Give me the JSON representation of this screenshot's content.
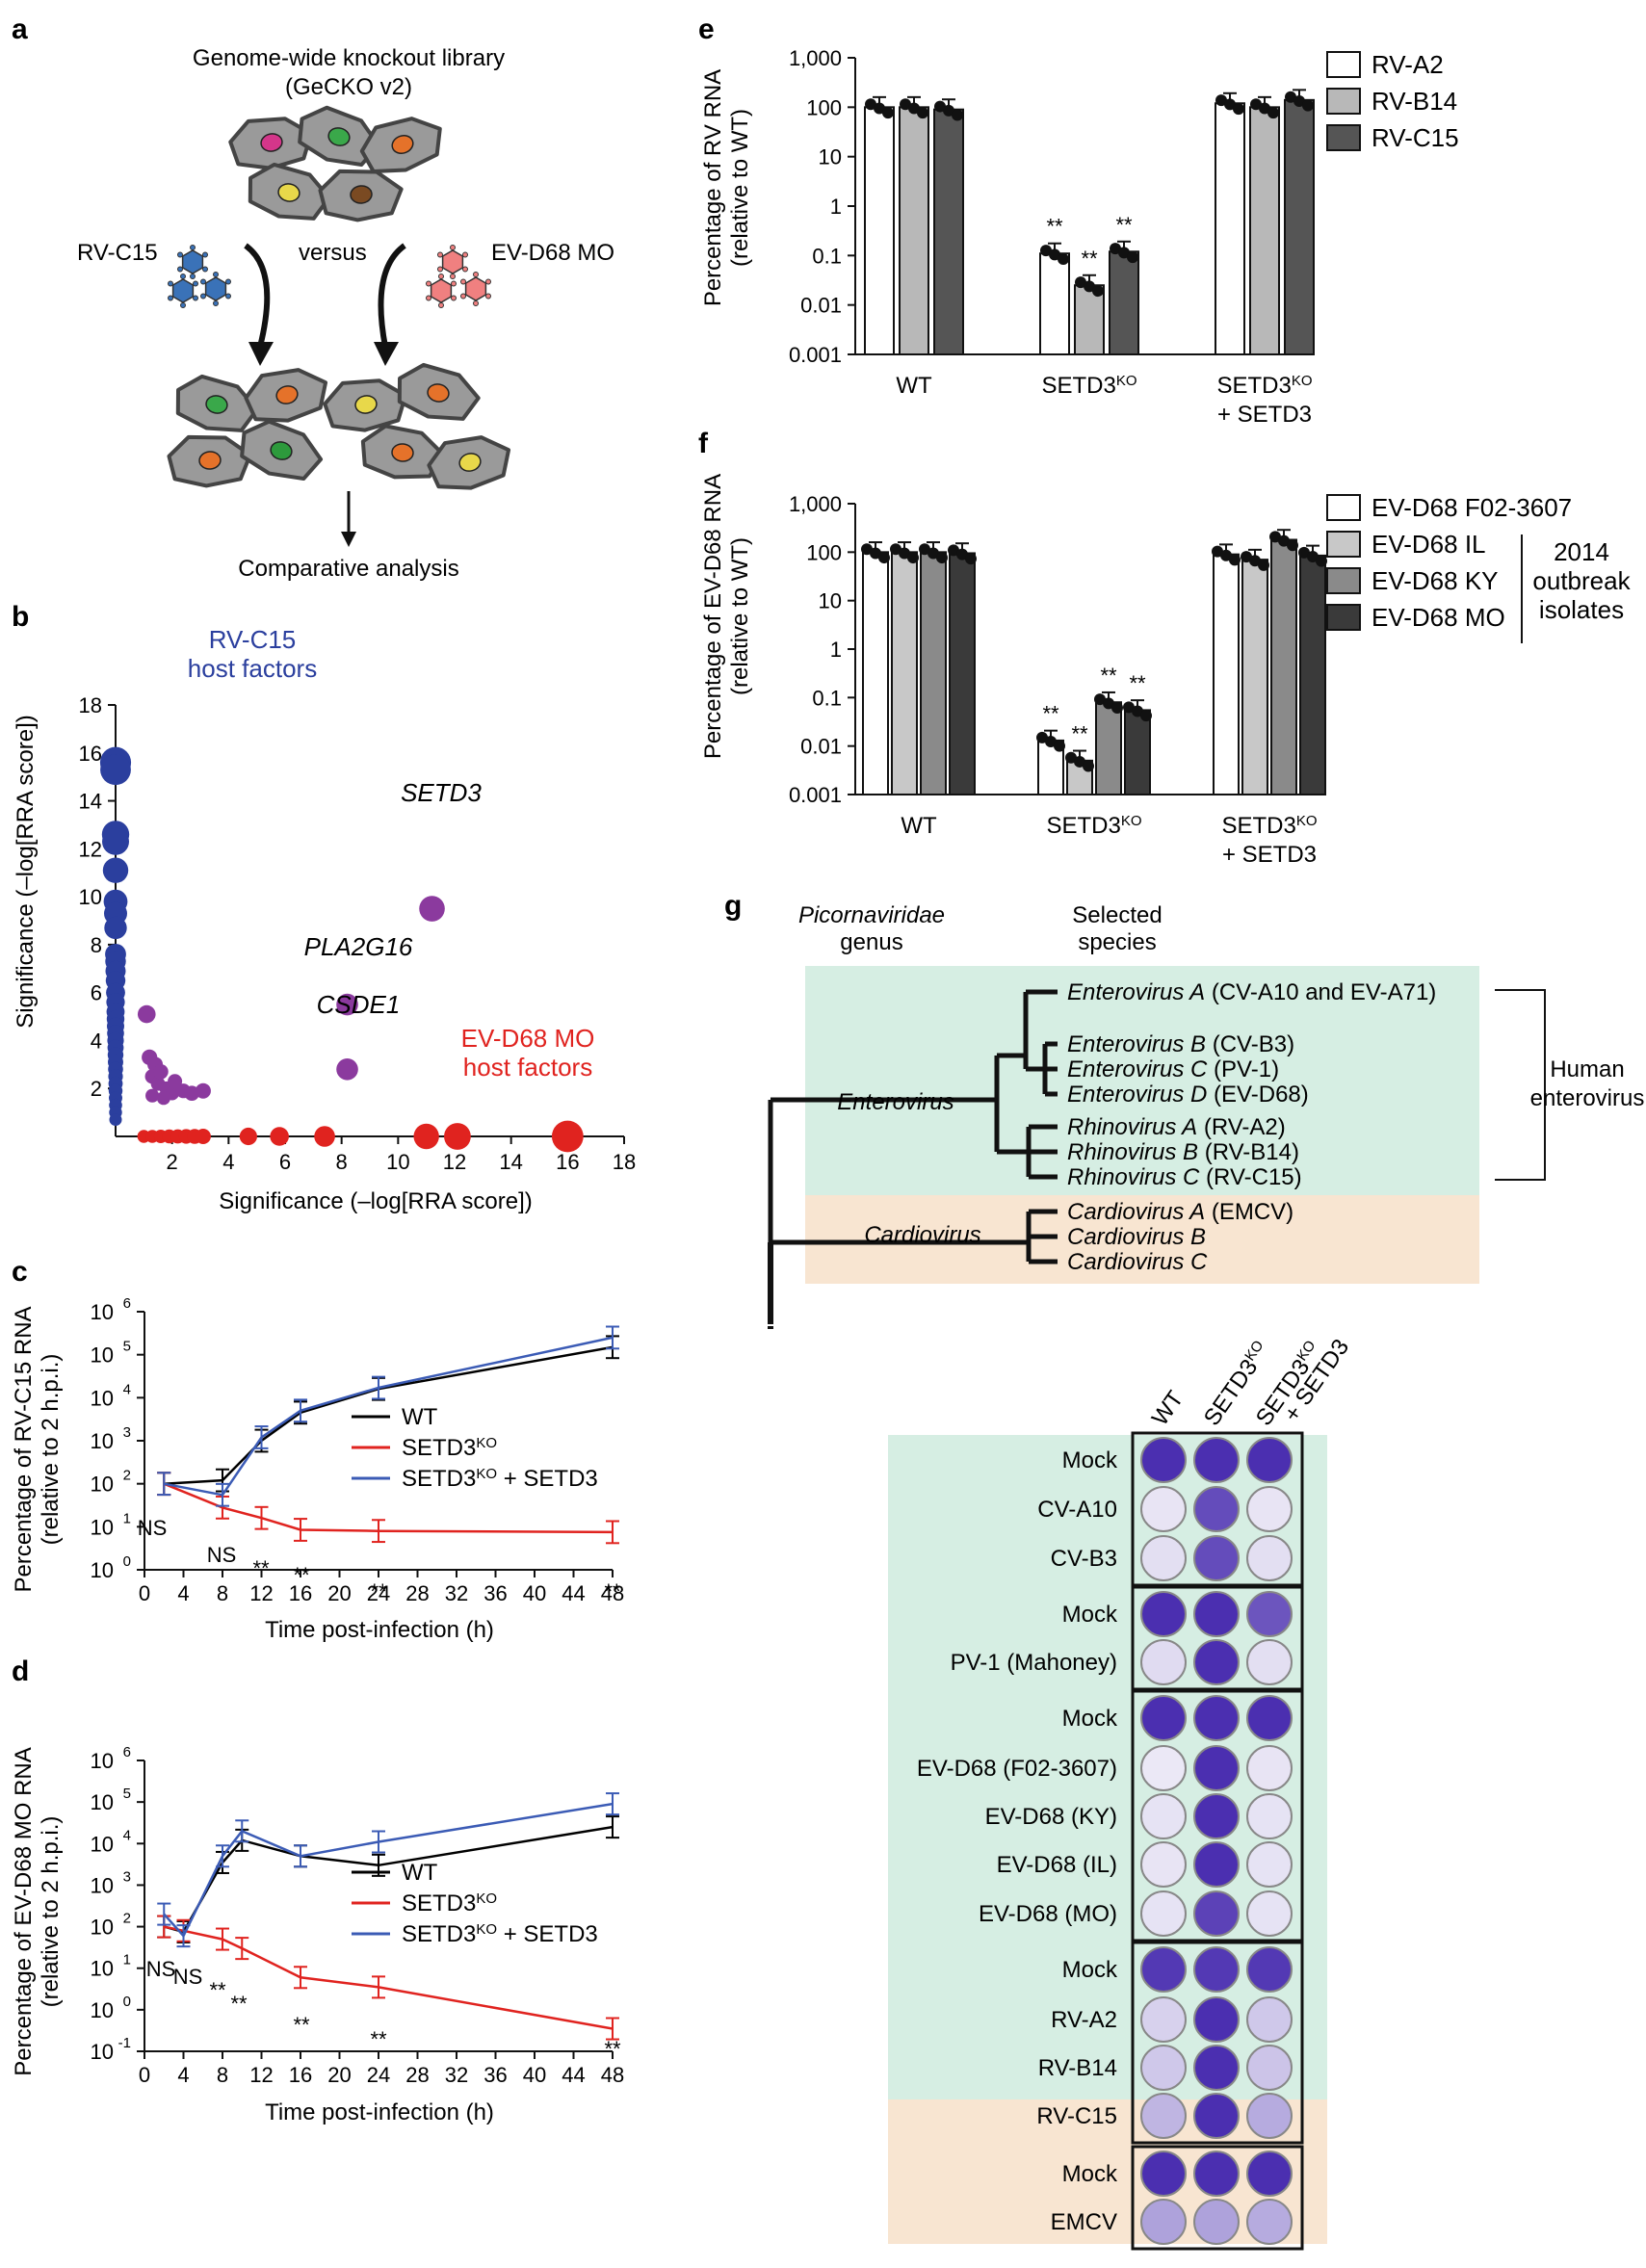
{
  "panel_a": {
    "letter": "a",
    "title_line1": "Genome-wide knockout library",
    "title_line2": "(GeCKO v2)",
    "left_virus": "RV-C15",
    "versus": "versus",
    "right_virus": "EV-D68 MO",
    "bottom": "Comparative analysis"
  },
  "panel_b": {
    "letter": "b",
    "rv_label_line1": "RV-C15",
    "rv_label_line2": "host factors",
    "ev_label_line1": "EV-D68 MO",
    "ev_label_line2": "host factors",
    "gene_setd3": "SETD3",
    "gene_pla2g16": "PLA2G16",
    "gene_csde1": "CSDE1",
    "xlabel": "Significance (–log[RRA score])",
    "ylabel": "Significance (–log[RRA score])",
    "colors": {
      "rv": "#2b3f9e",
      "ev": "#e0231f",
      "both": "#8b3a9e"
    }
  },
  "panel_c": {
    "letter": "c",
    "ylabel_line1": "Percentage of RV-C15 RNA",
    "ylabel_line2": "(relative to 2 h.p.i.)",
    "xlabel": "Time post-infection (h)",
    "legend": [
      "WT",
      "SETD3",
      "SETD3"
    ],
    "legend_sup": "KO",
    "legend_tail": " + SETD3",
    "annotations": [
      "NS",
      "NS",
      "**",
      "**",
      "**",
      "**"
    ]
  },
  "panel_d": {
    "letter": "d",
    "ylabel_line1": "Percentage of EV-D68 MO RNA",
    "ylabel_line2": "(relative to 2 h.p.i.)",
    "xlabel": "Time post-infection (h)",
    "legend": [
      "WT",
      "SETD3",
      "SETD3"
    ],
    "legend_sup": "KO",
    "legend_tail": " + SETD3",
    "annotations": [
      "NS",
      "NS",
      "**",
      "**",
      "**",
      "**",
      "**"
    ]
  },
  "panel_e": {
    "letter": "e",
    "ylabel_line1": "Percentage of RV RNA",
    "ylabel_line2": "(relative to WT)",
    "groups": [
      "WT",
      "SETD3",
      "SETD3"
    ],
    "group_sup": "KO",
    "group_tail": "+ SETD3",
    "legend": [
      "RV-A2",
      "RV-B14",
      "RV-C15"
    ],
    "sig": "**"
  },
  "panel_f": {
    "letter": "f",
    "ylabel_line1": "Percentage of EV-D68 RNA",
    "ylabel_line2": "(relative to WT)",
    "groups": [
      "WT",
      "SETD3",
      "SETD3"
    ],
    "group_sup": "KO",
    "group_tail": "+ SETD3",
    "legend": [
      "EV-D68 F02-3607",
      "EV-D68 IL",
      "EV-D68 KY",
      "EV-D68 MO"
    ],
    "bracket_label": [
      "2014",
      "outbreak",
      "isolates"
    ],
    "sig": "**"
  },
  "panel_g": {
    "letter": "g",
    "genus_header": [
      "Picornaviridae",
      "genus"
    ],
    "species_header": [
      "Selected",
      "species"
    ],
    "genus_enterovirus": "Enterovirus",
    "genus_cardiovirus": "Cardiovirus",
    "human_enterovirus": [
      "Human",
      "enterovirus"
    ],
    "species": [
      {
        "name": "Enterovirus A",
        "extra": " (CV-A10 and EV-A71)"
      },
      {
        "name": "Enterovirus B",
        "extra": " (CV-B3)"
      },
      {
        "name": "Enterovirus C",
        "extra": " (PV-1)"
      },
      {
        "name": "Enterovirus D",
        "extra": " (EV-D68)"
      },
      {
        "name": "Rhinovirus A",
        "extra": " (RV-A2)"
      },
      {
        "name": "Rhinovirus B",
        "extra": " (RV-B14)"
      },
      {
        "name": "Rhinovirus C",
        "extra": " (RV-C15)"
      },
      {
        "name": "Cardiovirus A",
        "extra": " (EMCV)"
      },
      {
        "name": "Cardiovirus B",
        "extra": ""
      },
      {
        "name": "Cardiovirus C",
        "extra": ""
      }
    ],
    "plate_cols": [
      "WT",
      "SETD3",
      "SETD3"
    ],
    "plate_col_sup": "KO",
    "plate_col_tail": "+ SETD3",
    "plate_rows": [
      "Mock",
      "CV-A10",
      "CV-B3",
      "Mock",
      "PV-1 (Mahoney)",
      "Mock",
      "EV-D68 (F02-3607)",
      "EV-D68 (KY)",
      "EV-D68  (IL)",
      "EV-D68 (MO)",
      "Mock",
      "RV-A2",
      "RV-B14",
      "RV-C15",
      "Mock",
      "EMCV"
    ],
    "colors": {
      "enterovirus_bg": "#d6eee3",
      "cardiovirus_bg": "#f8e5d1",
      "stain": "#4b2fb0"
    }
  },
  "chart_data": [
    {
      "panel": "b",
      "type": "scatter",
      "xlim": [
        0,
        18
      ],
      "ylim": [
        0,
        18
      ],
      "xticks": [
        2,
        4,
        6,
        8,
        10,
        12,
        14,
        16,
        18
      ],
      "yticks": [
        2,
        4,
        6,
        8,
        10,
        12,
        14,
        16,
        18
      ],
      "series": [
        {
          "name": "RV-C15 host factors",
          "points": [
            [
              0,
              15.6
            ],
            [
              0,
              15.3
            ],
            [
              0,
              12.6
            ],
            [
              0,
              12.3
            ],
            [
              0,
              11.1
            ],
            [
              0,
              9.8
            ],
            [
              0,
              9.3
            ],
            [
              0,
              8.7
            ],
            [
              0,
              7.6
            ],
            [
              0,
              7.3
            ],
            [
              0,
              6.9
            ],
            [
              0,
              6.5
            ],
            [
              0,
              6.0
            ],
            [
              0,
              5.6
            ],
            [
              0,
              5.2
            ],
            [
              0,
              4.9
            ],
            [
              0,
              4.6
            ],
            [
              0,
              4.3
            ],
            [
              0,
              4.0
            ],
            [
              0,
              3.7
            ],
            [
              0,
              3.4
            ],
            [
              0,
              3.1
            ],
            [
              0,
              2.8
            ],
            [
              0,
              2.5
            ],
            [
              0,
              2.2
            ],
            [
              0,
              1.9
            ],
            [
              0,
              1.6
            ],
            [
              0,
              1.3
            ],
            [
              0,
              1.0
            ],
            [
              0,
              0.7
            ]
          ]
        },
        {
          "name": "EV-D68 MO host factors",
          "points": [
            [
              1.0,
              0
            ],
            [
              1.3,
              0
            ],
            [
              1.6,
              0
            ],
            [
              1.9,
              0
            ],
            [
              2.2,
              0
            ],
            [
              2.5,
              0
            ],
            [
              2.8,
              0
            ],
            [
              3.1,
              0
            ],
            [
              4.7,
              0
            ],
            [
              5.8,
              0
            ],
            [
              7.4,
              0
            ],
            [
              11.0,
              0
            ],
            [
              12.1,
              0
            ],
            [
              16.0,
              0
            ]
          ]
        },
        {
          "name": "Shared",
          "points": [
            [
              1.1,
              5.1
            ],
            [
              1.2,
              3.3
            ],
            [
              1.4,
              3.0
            ],
            [
              1.3,
              2.5
            ],
            [
              1.5,
              2.2
            ],
            [
              1.6,
              2.7
            ],
            [
              1.8,
              2.0
            ],
            [
              2.0,
              1.8
            ],
            [
              2.1,
              2.3
            ],
            [
              2.4,
              1.9
            ],
            [
              2.7,
              1.8
            ],
            [
              3.1,
              1.9
            ],
            [
              1.3,
              1.7
            ],
            [
              1.7,
              1.6
            ],
            [
              8.2,
              5.5
            ],
            [
              8.2,
              2.8
            ],
            [
              11.2,
              9.5
            ]
          ]
        }
      ]
    },
    {
      "panel": "c",
      "type": "line",
      "yscale": "log",
      "ylim": [
        1,
        1000000
      ],
      "x": [
        2,
        8,
        12,
        16,
        24,
        48
      ],
      "xticks": [
        0,
        4,
        8,
        12,
        16,
        20,
        24,
        28,
        32,
        36,
        40,
        44,
        48
      ],
      "series": [
        {
          "name": "WT",
          "color": "#000000",
          "values": [
            100,
            120,
            1000,
            4500,
            16000,
            150000
          ]
        },
        {
          "name": "SETD3KO",
          "color": "#e0231f",
          "values": [
            100,
            28,
            16,
            8.5,
            8,
            7.5
          ]
        },
        {
          "name": "SETD3KO + SETD3",
          "color": "#3b5bb5",
          "values": [
            100,
            55,
            1200,
            5000,
            17000,
            250000
          ]
        }
      ]
    },
    {
      "panel": "d",
      "type": "line",
      "yscale": "log",
      "ylim": [
        0.1,
        1000000
      ],
      "x": [
        2,
        4,
        8,
        10,
        16,
        24,
        48
      ],
      "xticks": [
        0,
        4,
        8,
        12,
        16,
        20,
        24,
        28,
        32,
        36,
        40,
        44,
        48
      ],
      "series": [
        {
          "name": "WT",
          "color": "#000000",
          "values": [
            100,
            75,
            3500,
            12000,
            5000,
            3000,
            25000
          ]
        },
        {
          "name": "SETD3KO",
          "color": "#e0231f",
          "values": [
            100,
            80,
            50,
            30,
            6,
            3.5,
            0.35
          ]
        },
        {
          "name": "SETD3KO + SETD3",
          "color": "#3b5bb5",
          "values": [
            200,
            60,
            5000,
            20000,
            5000,
            11000,
            90000
          ]
        }
      ]
    },
    {
      "panel": "e",
      "type": "bar",
      "yscale": "log",
      "ylim": [
        0.001,
        1000
      ],
      "yticks": [
        "0.001",
        "0.01",
        "0.1",
        "1",
        "10",
        "100",
        "1,000"
      ],
      "categories": [
        "WT",
        "SETD3KO",
        "SETD3KO + SETD3"
      ],
      "series": [
        {
          "name": "RV-A2",
          "color": "#ffffff",
          "values": [
            100,
            0.11,
            120
          ]
        },
        {
          "name": "RV-B14",
          "color": "#b8b8b8",
          "values": [
            100,
            0.025,
            100
          ]
        },
        {
          "name": "RV-C15",
          "color": "#555555",
          "values": [
            90,
            0.12,
            140
          ]
        }
      ]
    },
    {
      "panel": "f",
      "type": "bar",
      "yscale": "log",
      "ylim": [
        0.001,
        1000
      ],
      "yticks": [
        "0.001",
        "0.01",
        "0.1",
        "1",
        "10",
        "100",
        "1,000"
      ],
      "categories": [
        "WT",
        "SETD3KO",
        "SETD3KO + SETD3"
      ],
      "series": [
        {
          "name": "EV-D68 F02-3607",
          "color": "#ffffff",
          "values": [
            100,
            0.013,
            90
          ]
        },
        {
          "name": "EV-D68 IL",
          "color": "#c8c8c8",
          "values": [
            100,
            0.005,
            70
          ]
        },
        {
          "name": "EV-D68 KY",
          "color": "#8a8a8a",
          "values": [
            100,
            0.08,
            180
          ]
        },
        {
          "name": "EV-D68 MO",
          "color": "#3a3a3a",
          "values": [
            95,
            0.055,
            85
          ]
        }
      ]
    }
  ]
}
